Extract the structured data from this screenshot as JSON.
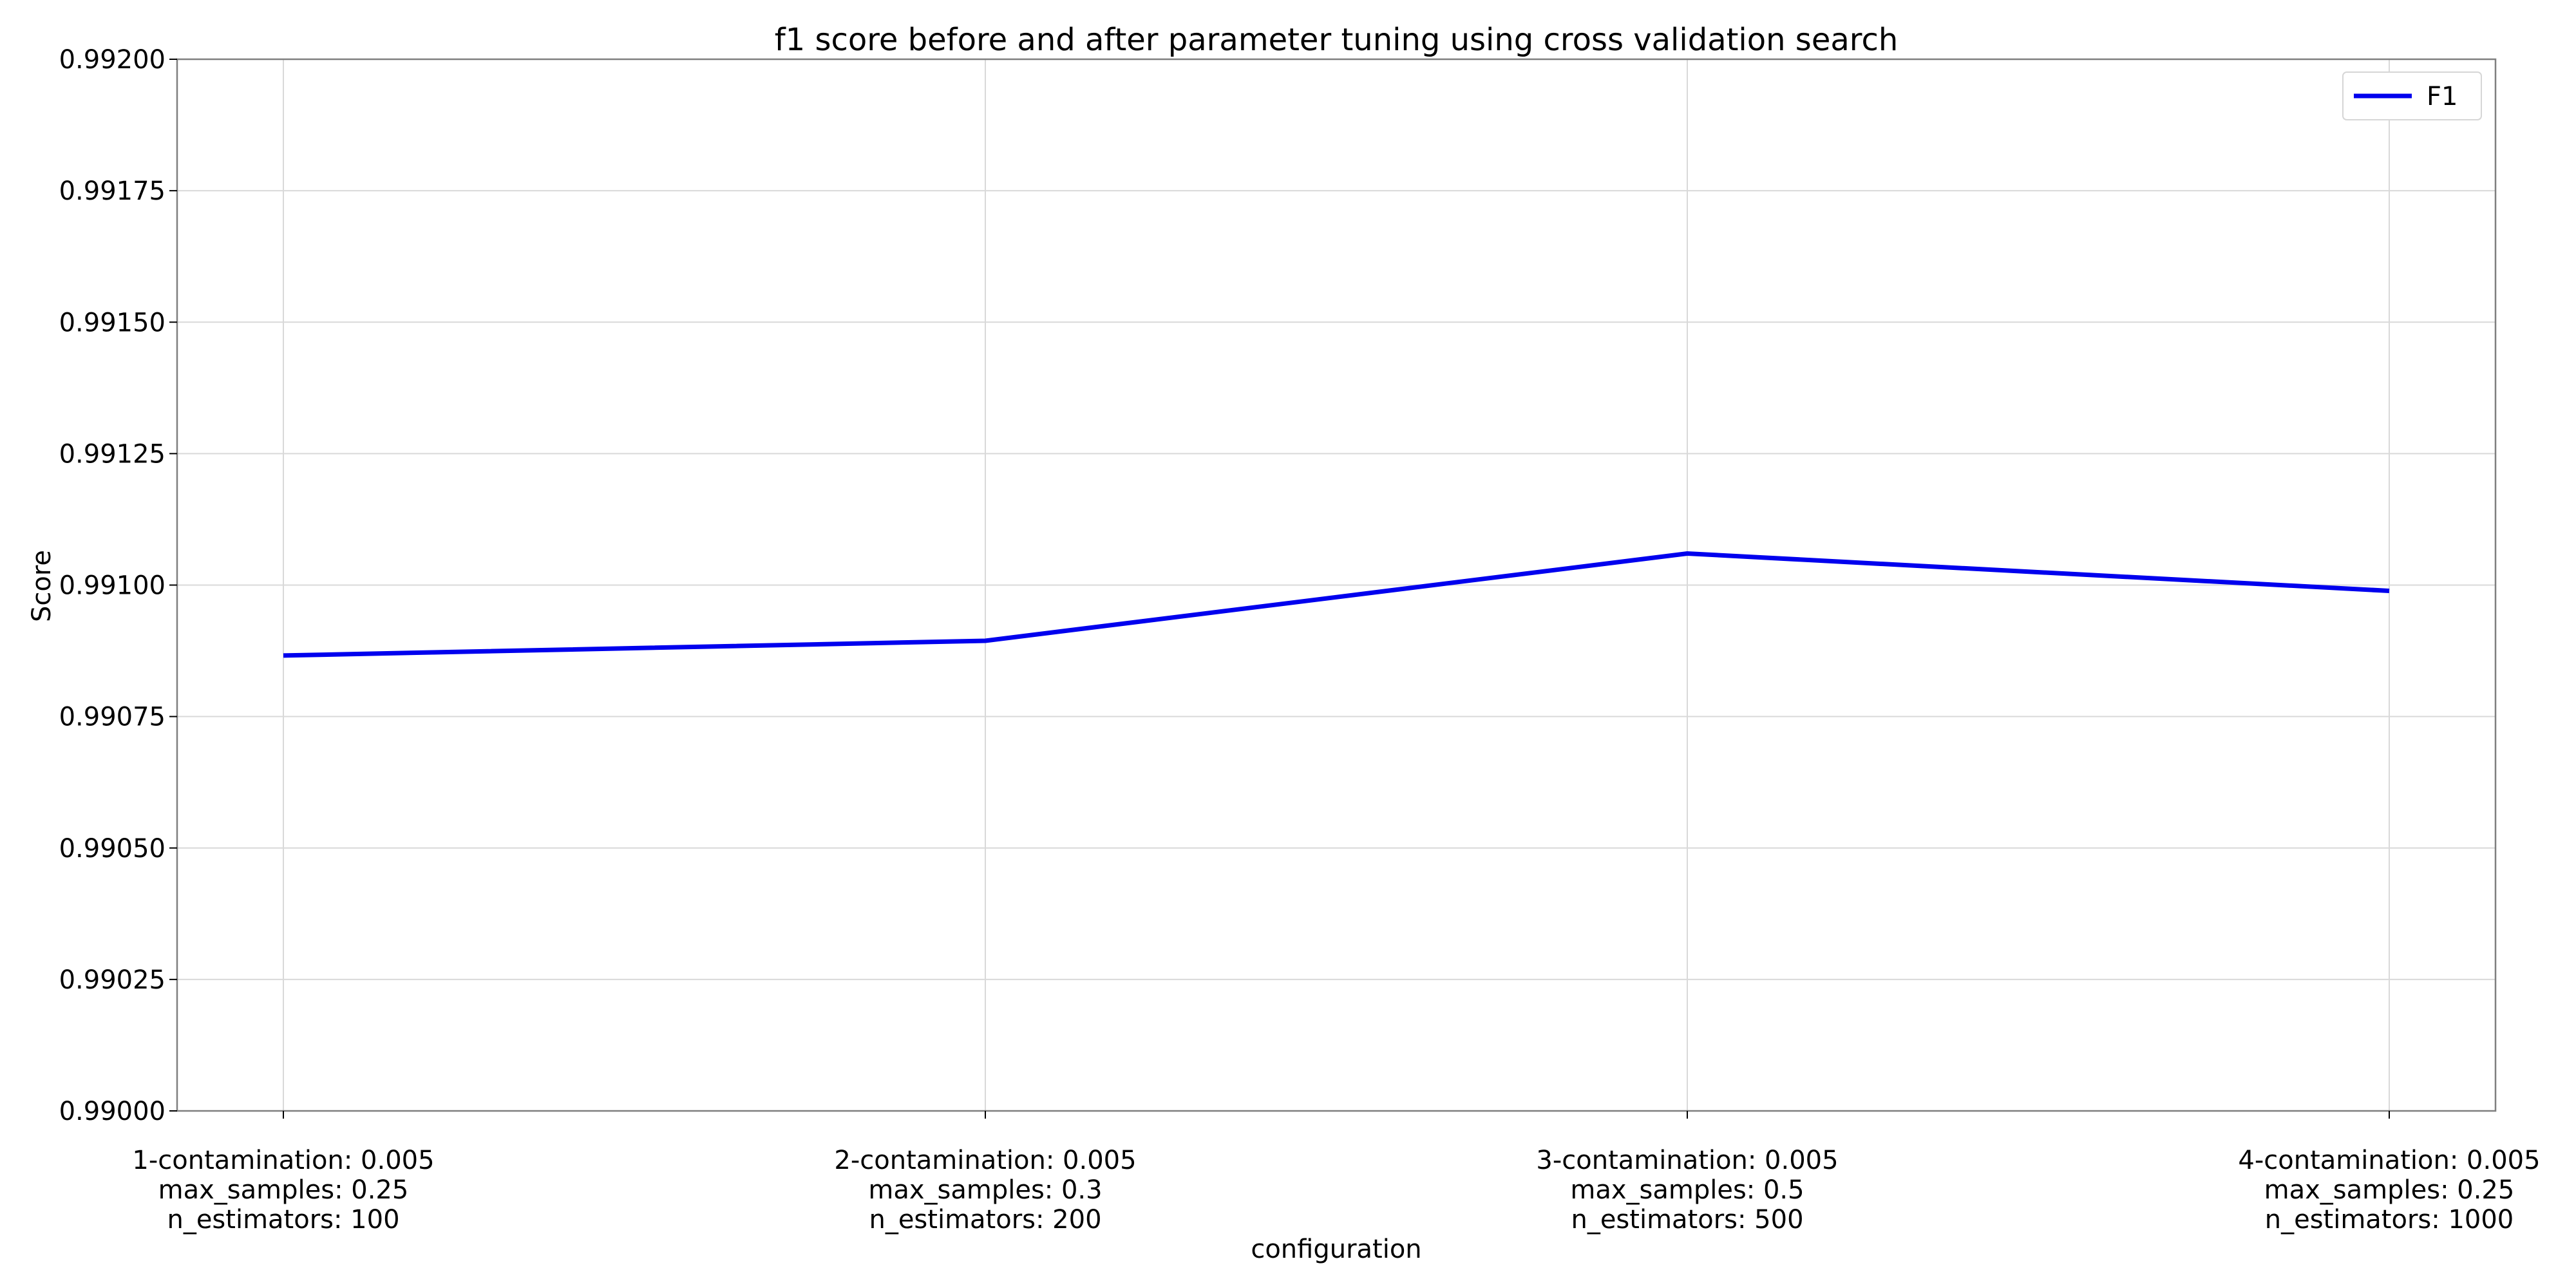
{
  "chart_data": {
    "type": "line",
    "title": "f1 score before and after parameter tuning using cross validation search",
    "xlabel": "configuration",
    "ylabel": "Score",
    "categories": [
      [
        "1-contamination: 0.005",
        "max_samples: 0.25",
        "n_estimators: 100"
      ],
      [
        "2-contamination: 0.005",
        "max_samples: 0.3",
        "n_estimators: 200"
      ],
      [
        "3-contamination: 0.005",
        "max_samples: 0.5",
        "n_estimators: 500"
      ],
      [
        "4-contamination: 0.005",
        "max_samples: 0.25",
        "n_estimators: 1000"
      ]
    ],
    "series": [
      {
        "name": "F1",
        "color": "#0000ee",
        "values": [
          0.990866,
          0.990894,
          0.99106,
          0.990989
        ]
      }
    ],
    "ylim": [
      0.99,
      0.992
    ],
    "yticks": [
      "0.99000",
      "0.99025",
      "0.99050",
      "0.99075",
      "0.99100",
      "0.99125",
      "0.99150",
      "0.99175",
      "0.99200"
    ],
    "grid": true,
    "legend": "top-right"
  }
}
